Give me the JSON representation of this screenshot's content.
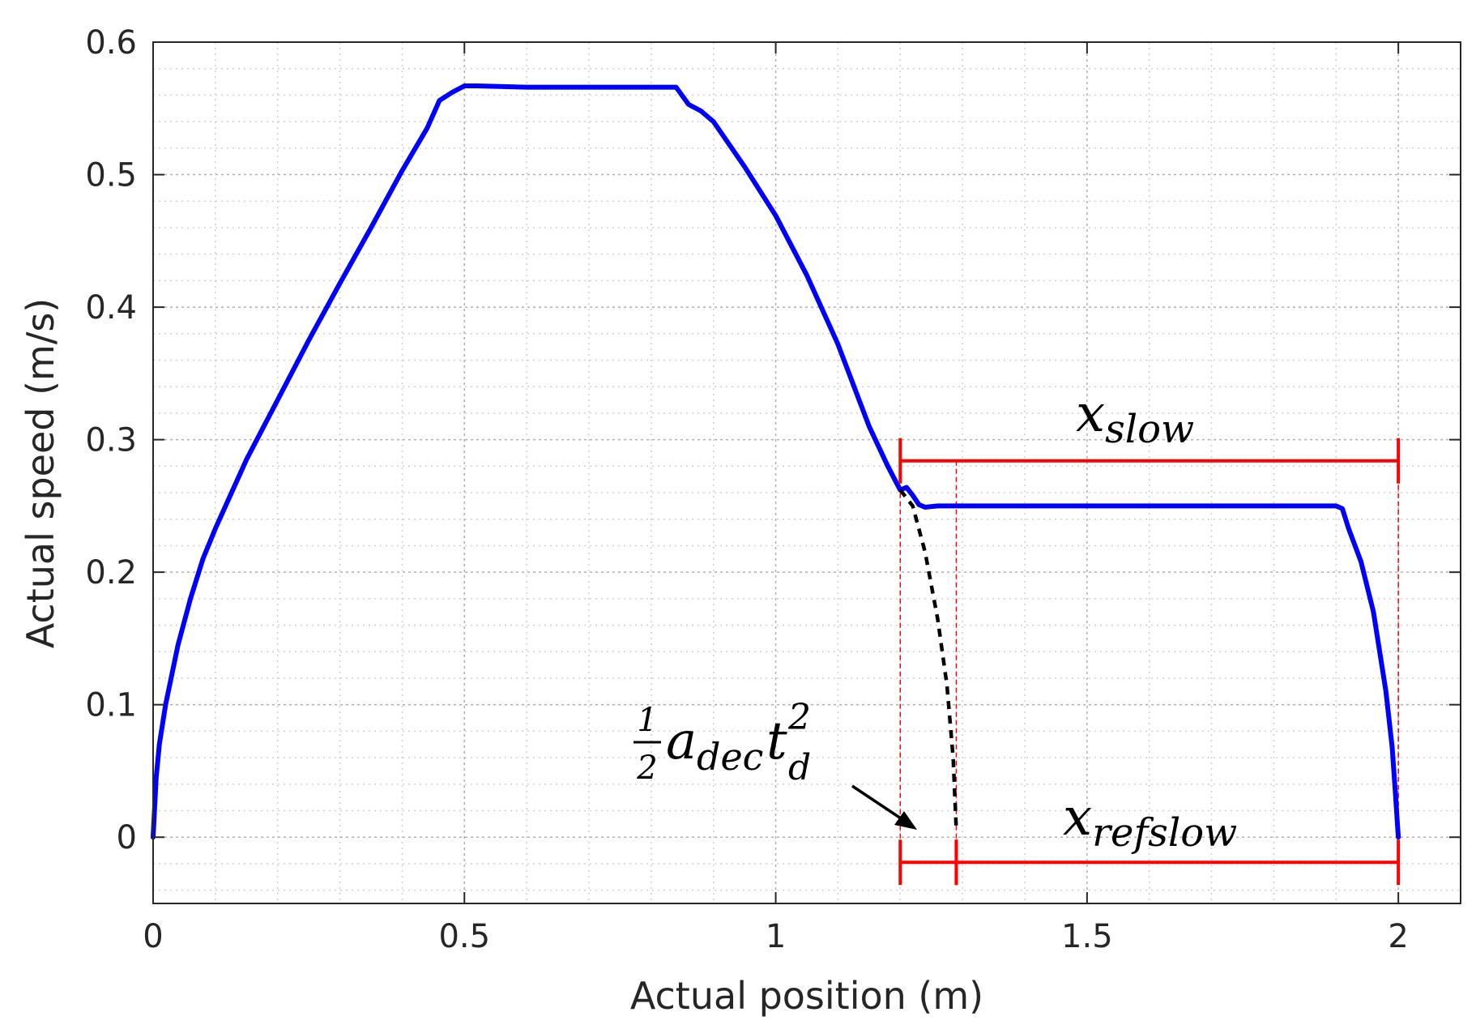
{
  "chart_data": {
    "type": "line",
    "title": "",
    "xlabel": "Actual position (m)",
    "ylabel": "Actual speed (m/s)",
    "xlim": [
      0,
      2.1
    ],
    "ylim": [
      -0.05,
      0.6
    ],
    "xticks": [
      0,
      0.5,
      1,
      1.5,
      2
    ],
    "xtick_labels": [
      "0",
      "0.5",
      "1",
      "1.5",
      "2"
    ],
    "yticks": [
      0,
      0.1,
      0.2,
      0.3,
      0.4,
      0.5,
      0.6
    ],
    "ytick_labels": [
      "0",
      "0.1",
      "0.2",
      "0.3",
      "0.4",
      "0.5",
      "0.6"
    ],
    "grid": true,
    "minor_grid": true,
    "series": [
      {
        "color": "#0000ff",
        "style": "solid",
        "x": [
          0,
          0.005,
          0.01,
          0.02,
          0.04,
          0.06,
          0.08,
          0.1,
          0.15,
          0.2,
          0.25,
          0.3,
          0.35,
          0.4,
          0.44,
          0.46,
          0.48,
          0.5,
          0.52,
          0.6,
          0.7,
          0.8,
          0.84,
          0.86,
          0.88,
          0.9,
          0.95,
          1.0,
          1.05,
          1.1,
          1.15,
          1.18,
          1.2,
          1.21,
          1.22,
          1.23,
          1.24,
          1.26,
          1.3,
          1.5,
          1.7,
          1.9,
          1.91,
          1.92,
          1.94,
          1.96,
          1.98,
          1.99,
          1.995,
          2.0
        ],
        "y": [
          0,
          0.045,
          0.07,
          0.1,
          0.145,
          0.18,
          0.21,
          0.233,
          0.285,
          0.33,
          0.375,
          0.418,
          0.46,
          0.503,
          0.535,
          0.556,
          0.562,
          0.567,
          0.567,
          0.566,
          0.566,
          0.566,
          0.566,
          0.553,
          0.548,
          0.54,
          0.506,
          0.469,
          0.424,
          0.372,
          0.31,
          0.28,
          0.262,
          0.264,
          0.258,
          0.251,
          0.249,
          0.25,
          0.25,
          0.25,
          0.25,
          0.25,
          0.248,
          0.233,
          0.208,
          0.17,
          0.11,
          0.068,
          0.035,
          0
        ]
      },
      {
        "color": "#000000",
        "style": "dashed",
        "x": [
          1.2,
          1.22,
          1.24,
          1.26,
          1.275,
          1.285,
          1.29
        ],
        "y": [
          0.262,
          0.25,
          0.215,
          0.165,
          0.115,
          0.06,
          0.005
        ]
      }
    ],
    "annotations": {
      "x_slow_symbol": "x",
      "x_slow_subscript": "slow",
      "x_slow_range": [
        1.2,
        2.0
      ],
      "x_slow_y": 0.284,
      "x_refslow_symbol": "x",
      "x_refslow_subscript": "refslow",
      "x_refslow_range": [
        1.29,
        2.0
      ],
      "x_refslow_y": -0.019,
      "half_segment_range": [
        1.2,
        1.29
      ],
      "formula_numerator": "1",
      "formula_denominator": "2",
      "formula_a": "a",
      "formula_a_subscript": "dec",
      "formula_t": "t",
      "formula_t_superscript": "2",
      "formula_t_subscript": "d",
      "ref_lines_x": [
        1.2,
        1.29,
        2.0
      ],
      "bracket_color": "#ff0000"
    }
  }
}
